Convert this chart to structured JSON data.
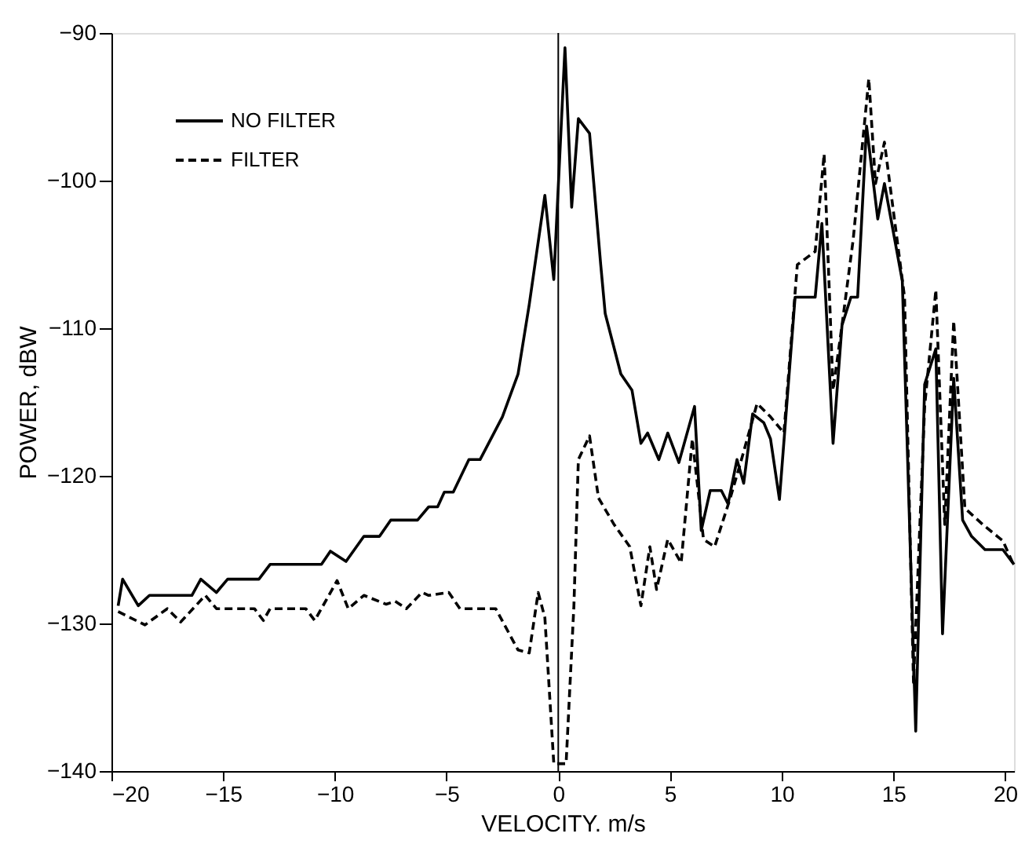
{
  "chart_data": {
    "type": "line",
    "xlabel": "VELOCITY. m/s",
    "ylabel": "POWER, dBW",
    "xlim": [
      -20,
      20.4
    ],
    "xticks": [
      -20,
      -15,
      -10,
      -5,
      0,
      5,
      10,
      15,
      20
    ],
    "ylim": [
      -140,
      -90
    ],
    "yticks": [
      -140,
      -130,
      -120,
      -110,
      -100,
      -90
    ],
    "grid": false,
    "legend": "top left",
    "marker": "none",
    "ref_lines": [
      {
        "axis": "x",
        "value": 0,
        "color": "#000000",
        "line_style": "solid"
      }
    ],
    "series": [
      {
        "name": "NO FILTER",
        "color": "#000000",
        "line_style": "solid",
        "x": [
          -19.7,
          -19.5,
          -18.8,
          -18.3,
          -16.4,
          -16.0,
          -15.3,
          -14.8,
          -13.4,
          -12.9,
          -10.6,
          -10.2,
          -9.5,
          -8.7,
          -8.0,
          -7.5,
          -6.3,
          -5.8,
          -5.4,
          -5.1,
          -4.7,
          -4.0,
          -3.5,
          -2.5,
          -1.8,
          -1.3,
          -0.6,
          -0.2,
          0.3,
          0.6,
          0.9,
          1.4,
          1.9,
          2.1,
          2.8,
          3.3,
          3.7,
          4.0,
          4.5,
          4.9,
          5.4,
          6.1,
          6.4,
          6.8,
          7.3,
          7.6,
          8.0,
          8.3,
          8.7,
          9.2,
          9.5,
          9.9,
          10.6,
          11.5,
          11.8,
          12.3,
          12.7,
          13.1,
          13.4,
          13.8,
          14.3,
          14.6,
          15.4,
          16.0,
          16.4,
          16.9,
          17.2,
          17.7,
          18.1,
          18.5,
          19.1,
          19.9,
          20.4
        ],
        "values": [
          -128.8,
          -127.0,
          -128.8,
          -128.1,
          -128.1,
          -127.0,
          -127.9,
          -127.0,
          -127.0,
          -126.0,
          -126.0,
          -125.1,
          -125.8,
          -124.1,
          -124.1,
          -123.0,
          -123.0,
          -122.1,
          -122.1,
          -121.1,
          -121.1,
          -118.9,
          -118.9,
          -116.0,
          -113.1,
          -108.4,
          -101.0,
          -106.7,
          -91.0,
          -101.8,
          -95.8,
          -96.8,
          -105.7,
          -109.0,
          -113.1,
          -114.2,
          -117.8,
          -117.1,
          -118.9,
          -117.1,
          -119.1,
          -115.3,
          -123.7,
          -121.0,
          -121.0,
          -121.9,
          -118.9,
          -120.5,
          -115.8,
          -116.4,
          -117.5,
          -121.6,
          -107.9,
          -107.9,
          -102.9,
          -117.8,
          -109.8,
          -107.9,
          -107.9,
          -96.3,
          -102.6,
          -100.2,
          -106.8,
          -137.3,
          -113.8,
          -111.4,
          -130.7,
          -113.4,
          -123.0,
          -124.1,
          -125.0,
          -125.0,
          -126.0
        ]
      },
      {
        "name": "FILTER",
        "color": "#000000",
        "line_style": "dashed",
        "x": [
          -19.7,
          -18.5,
          -17.5,
          -16.9,
          -15.8,
          -15.3,
          -13.6,
          -13.2,
          -12.9,
          -11.3,
          -10.9,
          -9.9,
          -9.4,
          -8.7,
          -7.7,
          -7.3,
          -6.8,
          -6.1,
          -5.8,
          -4.9,
          -4.4,
          -2.8,
          -1.8,
          -1.3,
          -0.9,
          -0.6,
          -0.2,
          0.35,
          0.7,
          0.9,
          1.4,
          1.8,
          2.5,
          3.2,
          3.7,
          4.1,
          4.4,
          4.9,
          5.5,
          6.0,
          6.5,
          7.0,
          7.7,
          8.2,
          8.9,
          9.5,
          10.1,
          10.7,
          11.5,
          11.9,
          12.3,
          12.7,
          13.2,
          13.9,
          14.2,
          14.6,
          15.5,
          15.9,
          16.4,
          16.9,
          17.3,
          17.7,
          18.2,
          19.0,
          19.9,
          20.4
        ],
        "values": [
          -129.2,
          -130.1,
          -129.0,
          -129.9,
          -128.1,
          -129.0,
          -129.0,
          -129.8,
          -129.0,
          -129.0,
          -129.8,
          -127.1,
          -129.0,
          -128.1,
          -128.7,
          -128.5,
          -129.0,
          -127.9,
          -128.1,
          -127.9,
          -129.0,
          -129.0,
          -131.8,
          -132.0,
          -127.9,
          -129.6,
          -139.5,
          -139.5,
          -128.8,
          -118.9,
          -117.3,
          -121.5,
          -123.3,
          -124.8,
          -128.8,
          -124.8,
          -127.7,
          -124.3,
          -125.9,
          -117.5,
          -124.3,
          -124.8,
          -121.5,
          -118.9,
          -115.1,
          -116.0,
          -117.1,
          -105.7,
          -104.8,
          -98.2,
          -114.2,
          -109.8,
          -104.0,
          -93.1,
          -100.2,
          -97.4,
          -107.9,
          -134.0,
          -115.3,
          -107.4,
          -123.3,
          -109.5,
          -122.2,
          -123.3,
          -124.4,
          -126.1
        ]
      }
    ]
  }
}
